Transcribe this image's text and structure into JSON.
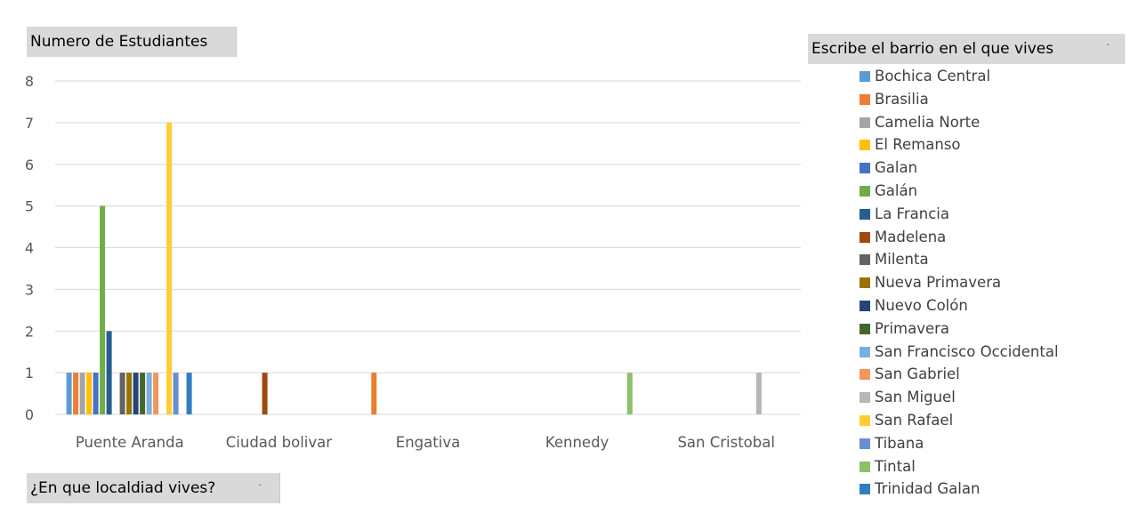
{
  "y_field_label": "Numero de Estudiantes",
  "x_field_label": "¿En que localdiad vives?",
  "legend_field_label": "Escribe el barrio en el que vives",
  "dropdown_marker": "-",
  "chart_data": {
    "type": "bar",
    "ylim": [
      0,
      8
    ],
    "yticks": [
      0,
      1,
      2,
      3,
      4,
      5,
      6,
      7,
      8
    ],
    "grid": true,
    "legend_position": "right",
    "categories": [
      "Puente Aranda",
      "Ciudad bolivar",
      "Engativa",
      "Kennedy",
      "San Cristobal"
    ],
    "series": [
      {
        "name": "Bochica Central",
        "color": "#5b9bd5",
        "values": [
          1,
          null,
          null,
          null,
          null
        ]
      },
      {
        "name": "Brasilia",
        "color": "#ed7d31",
        "values": [
          1,
          null,
          1,
          null,
          null
        ]
      },
      {
        "name": "Camelia Norte",
        "color": "#a5a5a5",
        "values": [
          1,
          null,
          null,
          null,
          null
        ]
      },
      {
        "name": "El Remanso",
        "color": "#ffc000",
        "values": [
          1,
          null,
          null,
          null,
          null
        ]
      },
      {
        "name": "Galan",
        "color": "#4472c4",
        "values": [
          1,
          null,
          null,
          null,
          null
        ]
      },
      {
        "name": "Galán",
        "color": "#70ad47",
        "values": [
          5,
          null,
          null,
          null,
          null
        ]
      },
      {
        "name": "La Francia",
        "color": "#255e91",
        "values": [
          2,
          null,
          null,
          null,
          null
        ]
      },
      {
        "name": "Madelena",
        "color": "#9e480e",
        "values": [
          null,
          1,
          null,
          null,
          null
        ]
      },
      {
        "name": "Milenta",
        "color": "#636363",
        "values": [
          1,
          null,
          null,
          null,
          null
        ]
      },
      {
        "name": "Nueva Primavera",
        "color": "#997300",
        "values": [
          1,
          null,
          null,
          null,
          null
        ]
      },
      {
        "name": "Nuevo Colón",
        "color": "#264478",
        "values": [
          1,
          null,
          null,
          null,
          null
        ]
      },
      {
        "name": "Primavera",
        "color": "#43682b",
        "values": [
          1,
          null,
          null,
          null,
          null
        ]
      },
      {
        "name": "San Francisco Occidental",
        "color": "#7cafdd",
        "values": [
          1,
          null,
          null,
          null,
          null
        ]
      },
      {
        "name": "San Gabriel",
        "color": "#f1975a",
        "values": [
          1,
          null,
          null,
          null,
          null
        ]
      },
      {
        "name": "San Miguel",
        "color": "#b7b7b7",
        "values": [
          null,
          null,
          null,
          null,
          1
        ]
      },
      {
        "name": "San Rafael",
        "color": "#ffcd33",
        "values": [
          7,
          null,
          null,
          null,
          null
        ]
      },
      {
        "name": "Tibana",
        "color": "#698ed0",
        "values": [
          1,
          null,
          null,
          null,
          null
        ]
      },
      {
        "name": "Tintal",
        "color": "#8cc168",
        "values": [
          null,
          null,
          null,
          1,
          null
        ]
      },
      {
        "name": "Trinidad Galan",
        "color": "#327dc2",
        "values": [
          1,
          null,
          null,
          null,
          null
        ]
      }
    ]
  }
}
